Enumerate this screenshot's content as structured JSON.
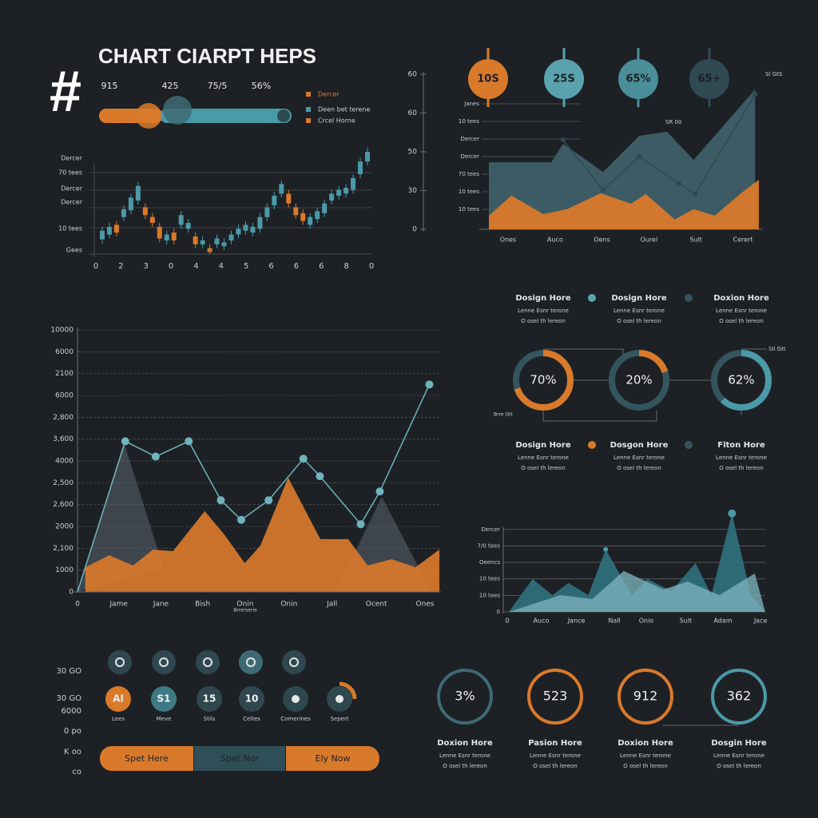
{
  "header": {
    "hash": "#",
    "title": "CHART CIARPT HEPS",
    "stats": [
      "915",
      "425",
      "75/5",
      "56%"
    ],
    "legend": [
      {
        "name": "Dercer",
        "color": "#d97a2b"
      },
      {
        "name": "Deen bet terene",
        "color": "#4a9aa8"
      },
      {
        "name": "Crcel Horne",
        "color": "#d97a2b"
      }
    ]
  },
  "chart_data": [
    {
      "type": "candlestick",
      "y_labels": [
        "Gees",
        "10 tees",
        "Dercer",
        "Dercer",
        "70 tees",
        "Dercer"
      ],
      "x_labels": [
        "0",
        "2",
        "3",
        "0",
        "4",
        "4",
        "5",
        "6",
        "6",
        "6",
        "8",
        "0"
      ],
      "ylim": [
        0,
        110
      ],
      "up_color": "#4a9aa8",
      "down_color": "#d97a2b",
      "open": [
        15,
        20,
        30,
        38,
        45,
        55,
        48,
        38,
        28,
        14,
        22,
        30,
        26,
        18,
        10,
        6,
        10,
        8,
        14,
        20,
        24,
        22,
        26,
        38,
        50,
        62,
        62,
        48,
        42,
        30,
        36,
        42,
        55,
        60,
        62,
        66,
        82,
        95
      ],
      "close": [
        24,
        28,
        22,
        46,
        58,
        70,
        40,
        32,
        16,
        20,
        14,
        40,
        32,
        10,
        14,
        2,
        16,
        12,
        20,
        26,
        30,
        28,
        38,
        48,
        60,
        72,
        52,
        40,
        34,
        38,
        44,
        52,
        62,
        66,
        68,
        78,
        95,
        105
      ],
      "high": [
        28,
        32,
        34,
        50,
        62,
        74,
        52,
        42,
        32,
        24,
        26,
        44,
        36,
        22,
        18,
        10,
        20,
        16,
        24,
        30,
        34,
        32,
        42,
        52,
        64,
        76,
        66,
        52,
        46,
        42,
        48,
        56,
        66,
        70,
        72,
        82,
        99,
        109
      ],
      "low": [
        11,
        16,
        18,
        34,
        41,
        51,
        36,
        28,
        12,
        10,
        10,
        26,
        22,
        6,
        6,
        0,
        6,
        4,
        10,
        16,
        20,
        18,
        22,
        34,
        46,
        58,
        48,
        36,
        30,
        26,
        32,
        38,
        51,
        56,
        58,
        62,
        78,
        91
      ]
    },
    {
      "type": "area",
      "y_labels": [
        "0",
        "30",
        "50",
        "60",
        "60"
      ],
      "inner_labels": [
        "Janes",
        "10 tees",
        "Dercer",
        "Dercer",
        "70 tees",
        "10 tees",
        "10 tees"
      ],
      "x_labels": [
        "Ones",
        "Auco",
        "Oens",
        "Ourel",
        "Sult",
        "Cerert"
      ],
      "xlim": [
        -0.41,
        5.34
      ],
      "ylim": [
        0,
        4
      ],
      "series": [
        {
          "style": "area",
          "color": "#3e5f68",
          "x": [
            -0.41,
            0.92,
            1.17,
            2.02,
            2.79,
            3.38,
            3.95,
            5.26
          ],
          "values": [
            1.73,
            1.73,
            2.21,
            1.48,
            2.41,
            2.52,
            1.79,
            3.61
          ]
        },
        {
          "style": "area",
          "color": "#d97a2b",
          "x": [
            -0.41,
            0.07,
            0.75,
            1.26,
            1.97,
            2.62,
            2.93,
            3.55,
            3.95,
            4.4,
            5,
            5.34
          ],
          "values": [
            0.35,
            0.87,
            0.39,
            0.52,
            0.93,
            0.66,
            0.91,
            0.25,
            0.52,
            0.35,
            0.97,
            1.28
          ]
        },
        {
          "style": "line",
          "color": "#2e4a52",
          "x": [
            1.17,
            2.02,
            2.79,
            3.64,
            3.98,
            5.26
          ],
          "values": [
            2.31,
            1.01,
            1.88,
            1.18,
            0.91,
            3.48
          ]
        }
      ],
      "bubbles": [
        {
          "label": "10S",
          "color": "#d97a2b"
        },
        {
          "label": "25S",
          "color": "#5aa3ae"
        },
        {
          "label": "65%",
          "color": "#4a8e99"
        },
        {
          "label": "65+",
          "color": "#2f4a53"
        }
      ],
      "notes": [
        "SI GtS",
        "SR 00"
      ]
    },
    {
      "type": "line",
      "y_labels": [
        "0",
        "1000",
        "2,100",
        "2000",
        "2,600",
        "2,500",
        "4000",
        "3,600",
        "2,800",
        "6000",
        "2100",
        "6000",
        "10000"
      ],
      "xticks": [
        {
          "value": 0,
          "label": "0"
        },
        {
          "value": 0.95,
          "label": "Jame"
        },
        {
          "value": 1.92,
          "label": "Jane"
        },
        {
          "value": 2.88,
          "label": "Bish"
        },
        {
          "value": 3.86,
          "label": "Onin"
        },
        {
          "value": 4.87,
          "label": "Onin"
        },
        {
          "value": 5.86,
          "label": "Jall"
        },
        {
          "value": 6.88,
          "label": "Ocent"
        },
        {
          "value": 8,
          "label": "Ones"
        }
      ],
      "xlim": [
        0,
        8.33
      ],
      "ylim": [
        0,
        12
      ],
      "caption": "Brrerserie",
      "series": [
        {
          "style": "area",
          "color": "#d97a2b",
          "x": [
            0.18,
            0.73,
            1.28,
            1.74,
            2.2,
            2.93,
            3.39,
            3.85,
            4.21,
            4.85,
            5.59,
            6.23,
            6.68,
            7.23,
            7.78,
            8.33
          ],
          "values": [
            1.13,
            1.68,
            1.21,
            1.94,
            1.87,
            3.7,
            2.6,
            1.32,
            2.12,
            5.23,
            2.42,
            2.42,
            1.21,
            1.5,
            1.13,
            1.94
          ]
        },
        {
          "style": "line",
          "color": "#6fb3bd",
          "x": [
            0,
            1.1,
            1.8,
            2.56,
            3.3,
            3.77,
            4.4,
            5.2,
            5.58,
            6.52,
            6.96,
            8.1
          ],
          "values": [
            0,
            6.9,
            6.2,
            6.9,
            4.2,
            3.3,
            4.2,
            6.1,
            5.3,
            3.1,
            4.6,
            9.5
          ]
        }
      ]
    },
    {
      "type": "mountain",
      "y_labels": [
        "0",
        "10 tees",
        "10 tees",
        "Oeencs",
        "7/0 tees",
        "Dercer"
      ],
      "xticks": [
        {
          "value": 0,
          "label": "0"
        },
        {
          "value": 0.94,
          "label": "Auco"
        },
        {
          "value": 1.91,
          "label": "Jance"
        },
        {
          "value": 2.96,
          "label": "Nall"
        },
        {
          "value": 3.84,
          "label": "Onio"
        },
        {
          "value": 4.93,
          "label": "Sult"
        },
        {
          "value": 5.96,
          "label": "Adam"
        },
        {
          "value": 7,
          "label": "Jace"
        }
      ],
      "xlim": [
        0,
        7.13
      ],
      "ylim": [
        0,
        6.2
      ],
      "series": [
        {
          "style": "area",
          "color": "#2f6f7a",
          "x": [
            0.04,
            0.7,
            1.25,
            1.69,
            2.24,
            2.72,
            3.44,
            3.88,
            4.54,
            5.2,
            5.64,
            6.21,
            6.73,
            7.13
          ],
          "values": [
            0,
            1.99,
            1.02,
            1.75,
            1.02,
            3.79,
            1.02,
            1.99,
            1.26,
            2.96,
            1.02,
            5.97,
            1.02,
            0
          ]
        },
        {
          "style": "area",
          "color": "#7fb7c0",
          "x": [
            0.04,
            1.47,
            2.35,
            3.22,
            4.32,
            4.98,
            5.86,
            6.84,
            7.13
          ],
          "values": [
            0,
            1.02,
            0.78,
            2.48,
            1.36,
            1.84,
            1.02,
            2.33,
            0
          ]
        }
      ]
    }
  ],
  "donuts": {
    "top": [
      {
        "title": "Dosign Hore",
        "lines": [
          "Lenne Esnr terone",
          "O osel th lereon"
        ]
      },
      {
        "title": "Dosign Hore",
        "lines": [
          "Lenne Esnr terone",
          "O osel th lereon"
        ]
      },
      {
        "title": "Doxion Hore",
        "lines": [
          "Lenne Esnr terone",
          "O osel th lereon"
        ]
      }
    ],
    "rings": [
      {
        "value": 70,
        "label": "70%",
        "color": "#d97a2b"
      },
      {
        "value": 20,
        "label": "20%",
        "color": "#d97a2b"
      },
      {
        "value": 62,
        "label": "62%",
        "color": "#4a9aa8"
      }
    ],
    "bottom": [
      {
        "title": "Dosign Hore",
        "lines": [
          "Lenne Esnr terone",
          "O osel th lereon"
        ]
      },
      {
        "title": "Dosgon Hore",
        "lines": [
          "Lenne Esnr terone",
          "O osel th lereon"
        ]
      },
      {
        "title": "Fiton Hore",
        "lines": [
          "Lenne Esnr terone",
          "O osel th lereon"
        ]
      }
    ],
    "notes": [
      "SIl Gtt",
      "Brre Gtt"
    ]
  },
  "kpis": [
    {
      "label": "3%",
      "color": "#3e6a74",
      "title": "Doxion Hore",
      "lines": [
        "Lenne Esnr terone",
        "O osel th lereon"
      ]
    },
    {
      "label": "523",
      "color": "#d97a2b",
      "title": "Pasion Hore",
      "lines": [
        "Lenne Esnr terone",
        "O osel th lereon"
      ]
    },
    {
      "label": "912",
      "color": "#d97a2b",
      "title": "Doxion Hore",
      "lines": [
        "Lenne Esnr terone",
        "O osel th lereon"
      ]
    },
    {
      "label": "362",
      "color": "#4a9aa8",
      "title": "Dosgin Hore",
      "lines": [
        "Lenne Esnr terone",
        "O osel th lereon"
      ]
    }
  ],
  "controls": {
    "row_labels": [
      "30 GO",
      "30 GO",
      "6000",
      "0 po",
      "K oo",
      "co"
    ],
    "tiles": [
      {
        "text": "AI",
        "caption": "Lees"
      },
      {
        "text": "S1",
        "caption": "Meve"
      },
      {
        "text": "15",
        "caption": "Stils"
      },
      {
        "text": "10",
        "caption": "Celtes"
      },
      {
        "text": "",
        "caption": "Comerines"
      },
      {
        "text": "",
        "caption": "Sepert"
      }
    ],
    "buttons": [
      {
        "text": "Spet Here",
        "color": "#d97a2b"
      },
      {
        "text": "Spet Nor",
        "color": "#2f4f58"
      },
      {
        "text": "Ely Now",
        "color": "#d97a2b"
      }
    ]
  }
}
